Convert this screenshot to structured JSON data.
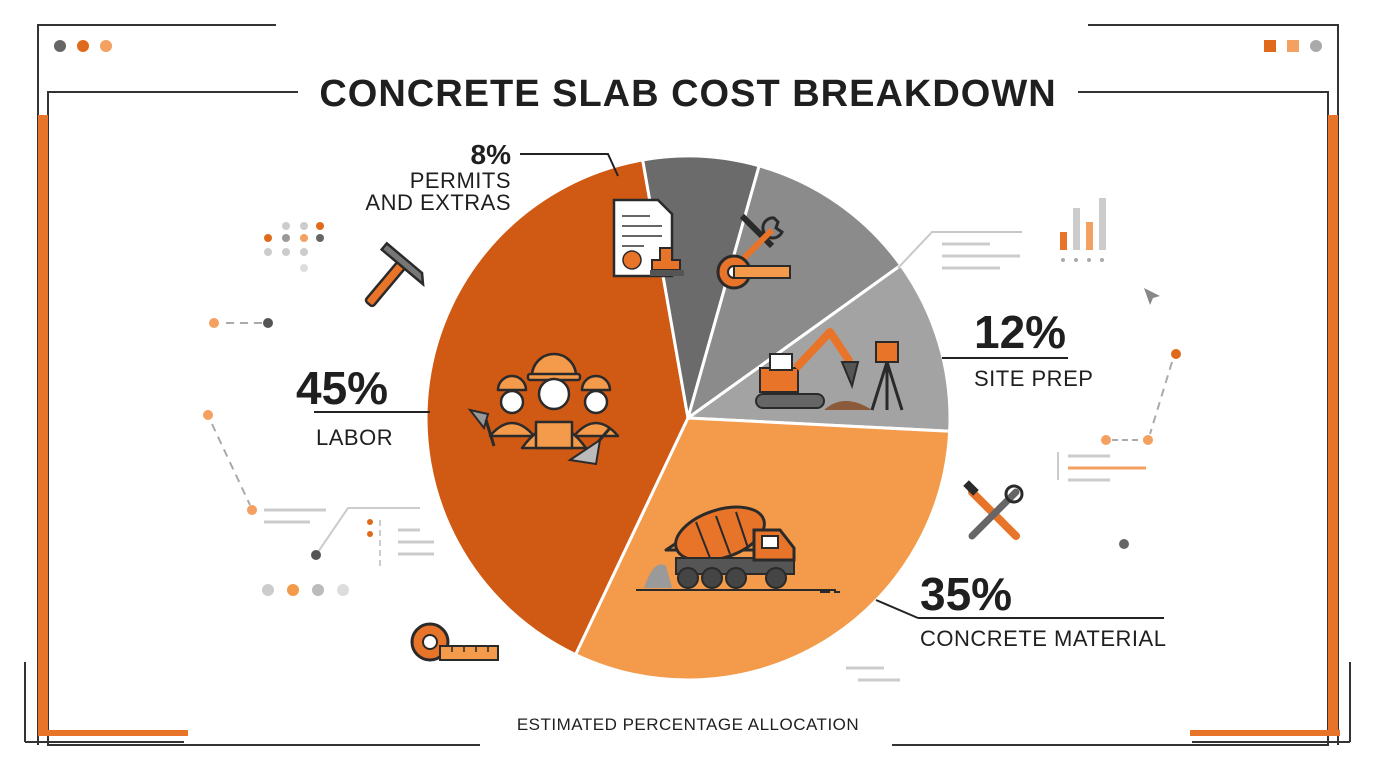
{
  "header": {
    "title": "CONCRETE SLAB COST BREAKDOWN"
  },
  "footer": {
    "caption": "ESTIMATED PERCENTAGE ALLOCATION"
  },
  "colors": {
    "labor": "#d05a14",
    "concrete_material": "#f39a4b",
    "site_prep": "#a3a3a3",
    "tools_equipment": "#8b8b8b",
    "permits_extras": "#6b6b6b",
    "accent": "#e8742a",
    "frame": "#333333"
  },
  "chart_data": {
    "type": "pie",
    "title": "CONCRETE SLAB COST BREAKDOWN",
    "subtitle": "ESTIMATED PERCENTAGE ALLOCATION",
    "slices": [
      {
        "key": "labor",
        "value": 45,
        "pct_text": "45%",
        "label": "LABOR",
        "icon": "workers-icon"
      },
      {
        "key": "permits_extras",
        "value": 8,
        "pct_text": "8%",
        "label_lines": [
          "PERMITS",
          "AND EXTRAS"
        ],
        "icon": "document-stamp-icon"
      },
      {
        "key": "tools_equipment",
        "value": 12,
        "icon": "tools-tape-measure-icon"
      },
      {
        "key": "site_prep",
        "value": 12,
        "pct_text": "12%",
        "label": "SITE PREP",
        "icon": "excavator-level-icon"
      },
      {
        "key": "concrete_material",
        "value": 35,
        "pct_text": "35%",
        "label": "CONCRETE MATERIAL",
        "icon": "concrete-mixer-truck-icon"
      }
    ],
    "legend": "none"
  },
  "decor_icons": [
    "hammer-icon",
    "wrench-screwdriver-icon",
    "tape-measure-icon",
    "bar-chart-icon",
    "cursor-icon"
  ]
}
